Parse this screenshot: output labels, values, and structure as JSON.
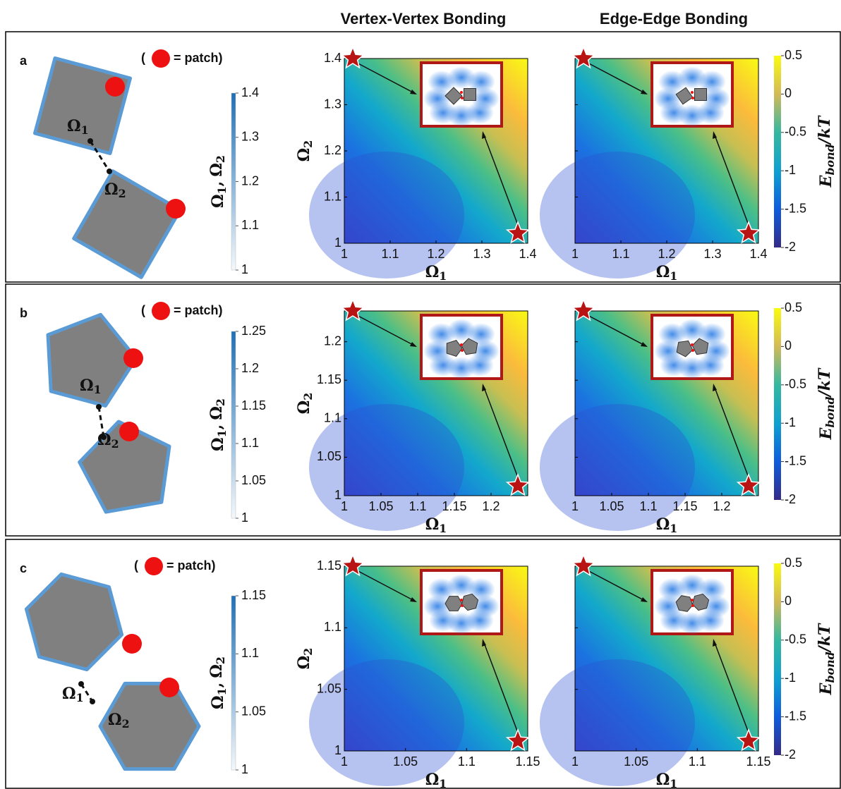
{
  "column_titles": [
    "Vertex-Vertex Bonding",
    "Edge-Edge Bonding"
  ],
  "symbols": {
    "omega": "Ω",
    "sub1": "1",
    "sub2": "2",
    "separator": ","
  },
  "energy_colorbar": {
    "base": "E",
    "sub": "bond",
    "rest": "/kT",
    "lim": [
      -2,
      0.5
    ],
    "ticks": [
      0.5,
      0,
      -0.5,
      -1,
      -1.5,
      -2
    ]
  },
  "rows": [
    {
      "label": "a",
      "legend_open": "(",
      "legend_text": "= patch)",
      "shape_colorbar": {
        "lim": [
          1,
          1.4
        ],
        "ticks": [
          1,
          1.1,
          1.2,
          1.3,
          1.4
        ]
      },
      "heatmap": {
        "xlim": [
          1,
          1.4
        ],
        "ylim": [
          1,
          1.4
        ],
        "xticks": [
          1,
          1.1,
          1.2,
          1.3,
          1.4
        ],
        "yticks": [
          1,
          1.1,
          1.2,
          1.3,
          1.4
        ]
      }
    },
    {
      "label": "b",
      "legend_open": "(",
      "legend_text": "= patch)",
      "shape_colorbar": {
        "lim": [
          1,
          1.25
        ],
        "ticks": [
          1,
          1.05,
          1.1,
          1.15,
          1.2,
          1.25
        ]
      },
      "heatmap": {
        "xlim": [
          1,
          1.25
        ],
        "ylim": [
          1,
          1.24
        ],
        "xticks": [
          1,
          1.05,
          1.1,
          1.15,
          1.2
        ],
        "yticks": [
          1,
          1.05,
          1.1,
          1.15,
          1.2
        ]
      }
    },
    {
      "label": "c",
      "legend_open": "(",
      "legend_text": "= patch)",
      "shape_colorbar": {
        "lim": [
          1,
          1.15
        ],
        "ticks": [
          1,
          1.05,
          1.1,
          1.15
        ]
      },
      "heatmap": {
        "xlim": [
          1,
          1.15
        ],
        "ylim": [
          1,
          1.15
        ],
        "xticks": [
          1,
          1.05,
          1.1,
          1.15
        ],
        "yticks": [
          1,
          1.05,
          1.1,
          1.15
        ]
      }
    }
  ]
}
